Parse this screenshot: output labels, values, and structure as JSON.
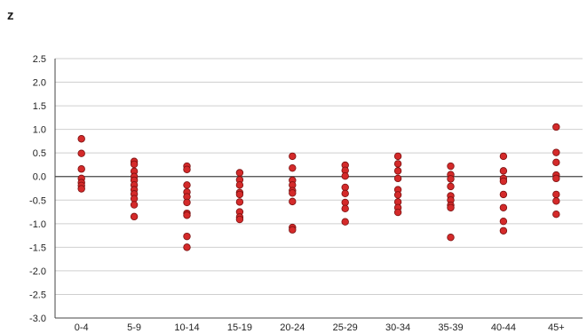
{
  "chart_data": {
    "type": "scatter",
    "title": "z",
    "xlabel": "",
    "ylabel": "",
    "categories": [
      "0-4",
      "5-9",
      "10-14",
      "15-19",
      "20-24",
      "25-29",
      "30-34",
      "35-39",
      "40-44",
      "45+"
    ],
    "ylim": [
      -3.0,
      2.5
    ],
    "yticks": [
      2.5,
      2.0,
      1.5,
      1.0,
      0.5,
      0.0,
      -0.5,
      -1.0,
      -1.5,
      -2.0,
      -2.5,
      -3.0
    ],
    "ytick_labels": [
      "2.5",
      "2.0",
      "1.5",
      "1.0",
      "0.5",
      "0.0",
      "-0.5",
      "-1.0",
      "-1.5",
      "-2.0",
      "-2.5",
      "-3.0"
    ],
    "grid": true,
    "point_color": "#d42a2a",
    "point_stroke": "#7a1010",
    "grid_color": "#cfcfcf",
    "zero_line_color": "#444444",
    "points": [
      [
        0.8,
        0.49,
        0.16,
        -0.04,
        -0.13,
        -0.19,
        -0.26
      ],
      [
        0.32,
        0.26,
        0.11,
        0.0,
        -0.08,
        -0.18,
        -0.28,
        -0.37,
        -0.47,
        -0.6,
        -0.85
      ],
      [
        0.22,
        0.15,
        -0.18,
        -0.33,
        -0.43,
        -0.55,
        -0.78,
        -0.82,
        -1.27,
        -1.5
      ],
      [
        0.08,
        -0.07,
        -0.18,
        -0.34,
        -0.38,
        -0.54,
        -0.75,
        -0.86,
        -0.91
      ],
      [
        0.43,
        0.18,
        -0.08,
        -0.18,
        -0.3,
        -0.35,
        -0.53,
        -1.08,
        -1.13
      ],
      [
        0.24,
        0.13,
        0.01,
        -0.23,
        -0.36,
        -0.55,
        -0.68,
        -0.96
      ],
      [
        0.43,
        0.27,
        0.12,
        -0.04,
        -0.28,
        -0.39,
        -0.54,
        -0.66,
        -0.76
      ],
      [
        0.22,
        0.04,
        -0.05,
        -0.21,
        -0.41,
        -0.5,
        -0.61,
        -0.66,
        -1.29
      ],
      [
        0.43,
        0.12,
        -0.04,
        -0.1,
        -0.38,
        -0.66,
        -0.95,
        -1.15
      ],
      [
        1.05,
        0.51,
        0.3,
        0.03,
        -0.04,
        -0.38,
        -0.52,
        -0.8
      ]
    ]
  }
}
